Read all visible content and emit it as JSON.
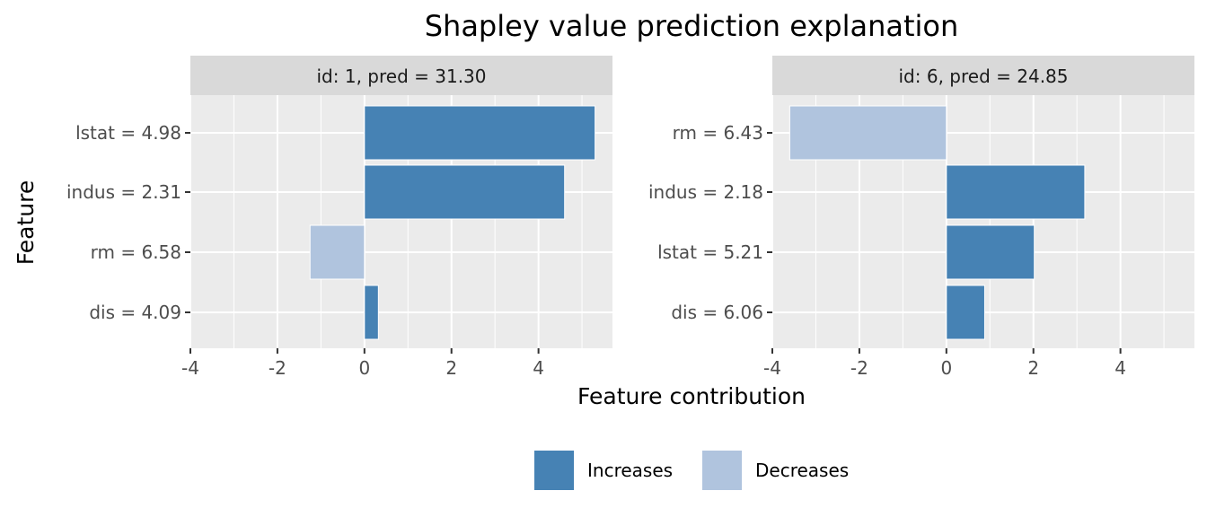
{
  "chart_data": {
    "type": "bar",
    "orientation": "horizontal",
    "title": "Shapley value prediction explanation",
    "xlabel": "Feature contribution",
    "ylabel": "Feature",
    "xlim": [
      -4,
      5.7
    ],
    "x_ticks": [
      -4,
      -2,
      0,
      2,
      4
    ],
    "x_tick_labels": [
      "-4",
      "-2",
      "0",
      "2",
      "4"
    ],
    "grid": true,
    "legend_position": "bottom",
    "legend": [
      {
        "label": "Increases",
        "color": "#4682B4"
      },
      {
        "label": "Decreases",
        "color": "#B0C4DE"
      }
    ],
    "panels": [
      {
        "label": "id: 1, pred = 31.30",
        "categories": [
          "lstat = 4.98",
          "indus = 2.31",
          "rm = 6.58",
          "dis = 4.09"
        ],
        "values": [
          5.3,
          4.6,
          -1.25,
          0.32
        ],
        "direction": [
          "Increases",
          "Increases",
          "Decreases",
          "Increases"
        ]
      },
      {
        "label": "id: 6, pred = 24.85",
        "categories": [
          "rm = 6.43",
          "indus = 2.18",
          "lstat = 5.21",
          "dis = 6.06"
        ],
        "values": [
          -3.6,
          3.18,
          2.02,
          0.88
        ],
        "direction": [
          "Decreases",
          "Increases",
          "Increases",
          "Increases"
        ]
      }
    ]
  }
}
